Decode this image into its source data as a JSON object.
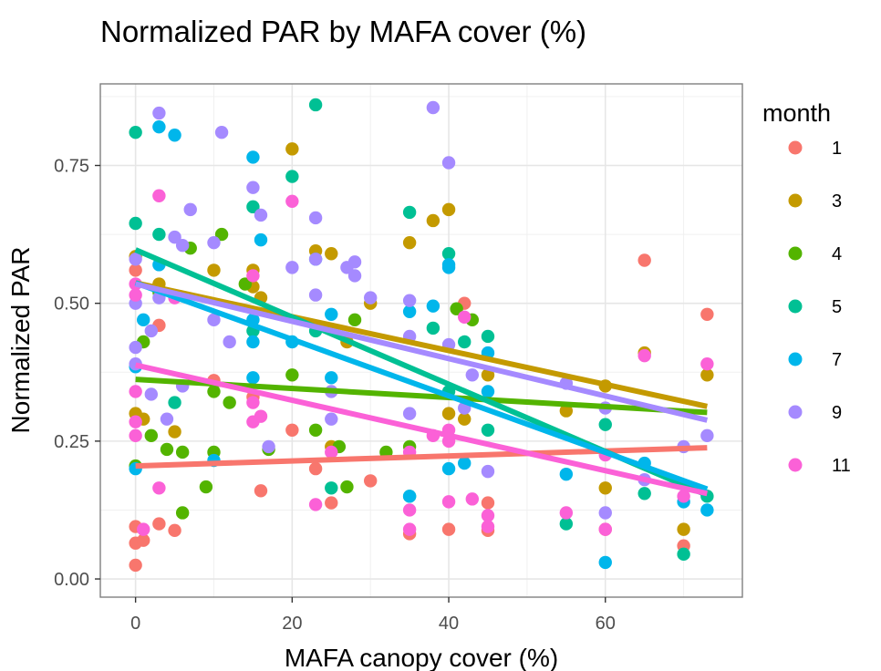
{
  "chart_data": {
    "type": "scatter",
    "title": "Normalized PAR by MAFA cover (%)",
    "xlabel": "MAFA canopy cover (%)",
    "ylabel": "Normalized PAR",
    "xlim": [
      -4.5,
      77.5
    ],
    "ylim": [
      -0.033,
      0.898
    ],
    "x_ticks": [
      0,
      20,
      40,
      60
    ],
    "x_tick_labels": [
      "0",
      "20",
      "40",
      "60"
    ],
    "y_ticks": [
      0.0,
      0.25,
      0.5,
      0.75
    ],
    "y_tick_labels": [
      "0.00",
      "0.25",
      "0.50",
      "0.75"
    ],
    "grid": true,
    "legend": {
      "title": "month",
      "position": "right"
    },
    "series": [
      {
        "name": "1",
        "color": "#F8766D",
        "trend": {
          "x": [
            0,
            73
          ],
          "y": [
            0.205,
            0.238
          ]
        },
        "points": [
          [
            0,
            0.56
          ],
          [
            0,
            0.095
          ],
          [
            0,
            0.065
          ],
          [
            0,
            0.025
          ],
          [
            1,
            0.07
          ],
          [
            3,
            0.46
          ],
          [
            3,
            0.1
          ],
          [
            5,
            0.088
          ],
          [
            10,
            0.36
          ],
          [
            15,
            0.33
          ],
          [
            16,
            0.16
          ],
          [
            20,
            0.27
          ],
          [
            23,
            0.2
          ],
          [
            25,
            0.138
          ],
          [
            30,
            0.178
          ],
          [
            35,
            0.082
          ],
          [
            40,
            0.09
          ],
          [
            42,
            0.5
          ],
          [
            45,
            0.138
          ],
          [
            45,
            0.088
          ],
          [
            60,
            0.09
          ],
          [
            65,
            0.578
          ],
          [
            70,
            0.06
          ],
          [
            73,
            0.48
          ]
        ]
      },
      {
        "name": "3",
        "color": "#C49A00",
        "trend": {
          "x": [
            0,
            73
          ],
          "y": [
            0.537,
            0.313
          ]
        },
        "points": [
          [
            0,
            0.585
          ],
          [
            0,
            0.3
          ],
          [
            1,
            0.29
          ],
          [
            3,
            0.535
          ],
          [
            5,
            0.267
          ],
          [
            10,
            0.56
          ],
          [
            15,
            0.56
          ],
          [
            15,
            0.53
          ],
          [
            16,
            0.51
          ],
          [
            20,
            0.78
          ],
          [
            23,
            0.595
          ],
          [
            25,
            0.59
          ],
          [
            25,
            0.24
          ],
          [
            27,
            0.43
          ],
          [
            30,
            0.5
          ],
          [
            35,
            0.61
          ],
          [
            38,
            0.65
          ],
          [
            40,
            0.67
          ],
          [
            40,
            0.3
          ],
          [
            42,
            0.29
          ],
          [
            45,
            0.37
          ],
          [
            55,
            0.305
          ],
          [
            60,
            0.35
          ],
          [
            60,
            0.165
          ],
          [
            65,
            0.41
          ],
          [
            70,
            0.09
          ],
          [
            73,
            0.37
          ]
        ]
      },
      {
        "name": "4",
        "color": "#53B400",
        "trend": {
          "x": [
            0,
            73
          ],
          "y": [
            0.362,
            0.302
          ]
        },
        "points": [
          [
            0,
            0.205
          ],
          [
            1,
            0.43
          ],
          [
            2,
            0.26
          ],
          [
            3,
            0.52
          ],
          [
            4,
            0.235
          ],
          [
            6,
            0.23
          ],
          [
            6,
            0.12
          ],
          [
            7,
            0.6
          ],
          [
            9,
            0.167
          ],
          [
            10,
            0.23
          ],
          [
            10,
            0.34
          ],
          [
            11,
            0.625
          ],
          [
            12,
            0.32
          ],
          [
            14,
            0.535
          ],
          [
            17,
            0.235
          ],
          [
            20,
            0.37
          ],
          [
            23,
            0.27
          ],
          [
            26,
            0.24
          ],
          [
            27,
            0.167
          ],
          [
            28,
            0.47
          ],
          [
            32,
            0.23
          ],
          [
            35,
            0.24
          ],
          [
            41,
            0.49
          ],
          [
            43,
            0.47
          ]
        ]
      },
      {
        "name": "5",
        "color": "#00C094",
        "trend": {
          "x": [
            0,
            73
          ],
          "y": [
            0.597,
            0.152
          ]
        },
        "points": [
          [
            0,
            0.81
          ],
          [
            0,
            0.645
          ],
          [
            3,
            0.625
          ],
          [
            5,
            0.32
          ],
          [
            15,
            0.675
          ],
          [
            15,
            0.45
          ],
          [
            20,
            0.73
          ],
          [
            23,
            0.86
          ],
          [
            23,
            0.45
          ],
          [
            25,
            0.165
          ],
          [
            35,
            0.665
          ],
          [
            35,
            0.15
          ],
          [
            38,
            0.455
          ],
          [
            40,
            0.59
          ],
          [
            40,
            0.34
          ],
          [
            42,
            0.43
          ],
          [
            45,
            0.44
          ],
          [
            45,
            0.27
          ],
          [
            55,
            0.1
          ],
          [
            60,
            0.28
          ],
          [
            65,
            0.155
          ],
          [
            70,
            0.045
          ],
          [
            73,
            0.15
          ]
        ]
      },
      {
        "name": "7",
        "color": "#00B6EB",
        "trend": {
          "x": [
            0,
            73
          ],
          "y": [
            0.537,
            0.163
          ]
        },
        "points": [
          [
            0,
            0.385
          ],
          [
            0,
            0.2
          ],
          [
            1,
            0.47
          ],
          [
            3,
            0.82
          ],
          [
            3,
            0.57
          ],
          [
            5,
            0.805
          ],
          [
            10,
            0.215
          ],
          [
            15,
            0.765
          ],
          [
            15,
            0.47
          ],
          [
            15,
            0.43
          ],
          [
            15,
            0.365
          ],
          [
            16,
            0.615
          ],
          [
            20,
            0.43
          ],
          [
            23,
            0.58
          ],
          [
            25,
            0.48
          ],
          [
            25,
            0.365
          ],
          [
            35,
            0.485
          ],
          [
            35,
            0.15
          ],
          [
            38,
            0.495
          ],
          [
            40,
            0.57
          ],
          [
            40,
            0.565
          ],
          [
            40,
            0.2
          ],
          [
            42,
            0.21
          ],
          [
            45,
            0.41
          ],
          [
            45,
            0.34
          ],
          [
            55,
            0.19
          ],
          [
            60,
            0.03
          ],
          [
            65,
            0.21
          ],
          [
            70,
            0.14
          ],
          [
            73,
            0.125
          ]
        ]
      },
      {
        "name": "9",
        "color": "#A58AFF",
        "trend": {
          "x": [
            0,
            73
          ],
          "y": [
            0.535,
            0.288
          ]
        },
        "points": [
          [
            0,
            0.58
          ],
          [
            0,
            0.5
          ],
          [
            0,
            0.42
          ],
          [
            0,
            0.39
          ],
          [
            2,
            0.335
          ],
          [
            2,
            0.45
          ],
          [
            3,
            0.845
          ],
          [
            3,
            0.51
          ],
          [
            4,
            0.29
          ],
          [
            5,
            0.62
          ],
          [
            6,
            0.605
          ],
          [
            6,
            0.35
          ],
          [
            7,
            0.67
          ],
          [
            10,
            0.61
          ],
          [
            10,
            0.47
          ],
          [
            11,
            0.81
          ],
          [
            12,
            0.43
          ],
          [
            15,
            0.71
          ],
          [
            16,
            0.66
          ],
          [
            17,
            0.24
          ],
          [
            20,
            0.565
          ],
          [
            23,
            0.655
          ],
          [
            23,
            0.58
          ],
          [
            23,
            0.515
          ],
          [
            25,
            0.34
          ],
          [
            25,
            0.29
          ],
          [
            27,
            0.565
          ],
          [
            28,
            0.575
          ],
          [
            28,
            0.55
          ],
          [
            30,
            0.51
          ],
          [
            35,
            0.505
          ],
          [
            35,
            0.44
          ],
          [
            35,
            0.3
          ],
          [
            38,
            0.855
          ],
          [
            40,
            0.755
          ],
          [
            40,
            0.425
          ],
          [
            42,
            0.31
          ],
          [
            43,
            0.37
          ],
          [
            45,
            0.195
          ],
          [
            55,
            0.355
          ],
          [
            60,
            0.31
          ],
          [
            60,
            0.12
          ],
          [
            65,
            0.18
          ],
          [
            70,
            0.24
          ],
          [
            73,
            0.26
          ]
        ]
      },
      {
        "name": "11",
        "color": "#FB61D7",
        "trend": {
          "x": [
            0,
            73
          ],
          "y": [
            0.388,
            0.155
          ]
        },
        "points": [
          [
            0,
            0.535
          ],
          [
            0,
            0.515
          ],
          [
            0,
            0.34
          ],
          [
            0,
            0.285
          ],
          [
            0,
            0.26
          ],
          [
            1,
            0.09
          ],
          [
            3,
            0.695
          ],
          [
            3,
            0.165
          ],
          [
            5,
            0.51
          ],
          [
            15,
            0.55
          ],
          [
            15,
            0.32
          ],
          [
            15,
            0.285
          ],
          [
            16,
            0.295
          ],
          [
            20,
            0.685
          ],
          [
            23,
            0.135
          ],
          [
            25,
            0.23
          ],
          [
            35,
            0.23
          ],
          [
            35,
            0.125
          ],
          [
            35,
            0.09
          ],
          [
            38,
            0.26
          ],
          [
            40,
            0.27
          ],
          [
            40,
            0.25
          ],
          [
            40,
            0.14
          ],
          [
            42,
            0.475
          ],
          [
            43,
            0.145
          ],
          [
            45,
            0.115
          ],
          [
            45,
            0.095
          ],
          [
            55,
            0.12
          ],
          [
            60,
            0.225
          ],
          [
            60,
            0.09
          ],
          [
            65,
            0.405
          ],
          [
            70,
            0.15
          ],
          [
            73,
            0.39
          ]
        ]
      }
    ]
  }
}
